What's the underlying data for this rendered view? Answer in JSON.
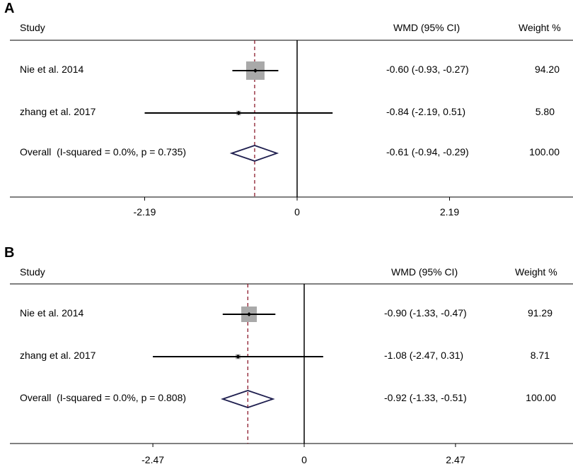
{
  "colors": {
    "ci_line": "#000000",
    "study_box": "#a9a9a9",
    "overall_diamond": "#1f1f4f",
    "pooled_dashed_line": "#8b1a2b",
    "zero_line": "#000000"
  },
  "chart_data": [
    {
      "type": "forest",
      "panel_label": "A",
      "headers": {
        "study": "Study",
        "effect": "WMD (95% CI)",
        "weight": "Weight %"
      },
      "xlim": [
        -2.19,
        2.19
      ],
      "ticks": [
        {
          "value": -2.19,
          "label": "-2.19"
        },
        {
          "value": 0,
          "label": "0"
        },
        {
          "value": 2.19,
          "label": "2.19"
        }
      ],
      "pooled_estimate": -0.61,
      "studies": [
        {
          "label": "Nie et al. 2014",
          "estimate": -0.6,
          "lower": -0.93,
          "upper": -0.27,
          "weight": 94.2,
          "effect_text": "-0.60 (-0.93, -0.27)",
          "weight_text": "94.20"
        },
        {
          "label": "zhang et al. 2017",
          "estimate": -0.84,
          "lower": -2.19,
          "upper": 0.51,
          "weight": 5.8,
          "effect_text": "-0.84 (-2.19, 0.51)",
          "weight_text": "5.80"
        }
      ],
      "overall": {
        "label": "Overall  (I-squared = 0.0%, p = 0.735)",
        "estimate": -0.61,
        "lower": -0.94,
        "upper": -0.29,
        "effect_text": "-0.61 (-0.94, -0.29)",
        "weight_text": "100.00"
      }
    },
    {
      "type": "forest",
      "panel_label": "B",
      "headers": {
        "study": "Study",
        "effect": "WMD (95% CI)",
        "weight": "Weight %"
      },
      "xlim": [
        -2.47,
        2.47
      ],
      "ticks": [
        {
          "value": -2.47,
          "label": "-2.47"
        },
        {
          "value": 0,
          "label": "0"
        },
        {
          "value": 2.47,
          "label": "2.47"
        }
      ],
      "pooled_estimate": -0.92,
      "studies": [
        {
          "label": "Nie et al. 2014",
          "estimate": -0.9,
          "lower": -1.33,
          "upper": -0.47,
          "weight": 91.29,
          "effect_text": "-0.90 (-1.33, -0.47)",
          "weight_text": "91.29"
        },
        {
          "label": "zhang et al. 2017",
          "estimate": -1.08,
          "lower": -2.47,
          "upper": 0.31,
          "weight": 8.71,
          "effect_text": "-1.08 (-2.47, 0.31)",
          "weight_text": "8.71"
        }
      ],
      "overall": {
        "label": "Overall  (I-squared = 0.0%, p = 0.808)",
        "estimate": -0.92,
        "lower": -1.33,
        "upper": -0.51,
        "effect_text": "-0.92 (-1.33, -0.51)",
        "weight_text": "100.00"
      }
    }
  ]
}
